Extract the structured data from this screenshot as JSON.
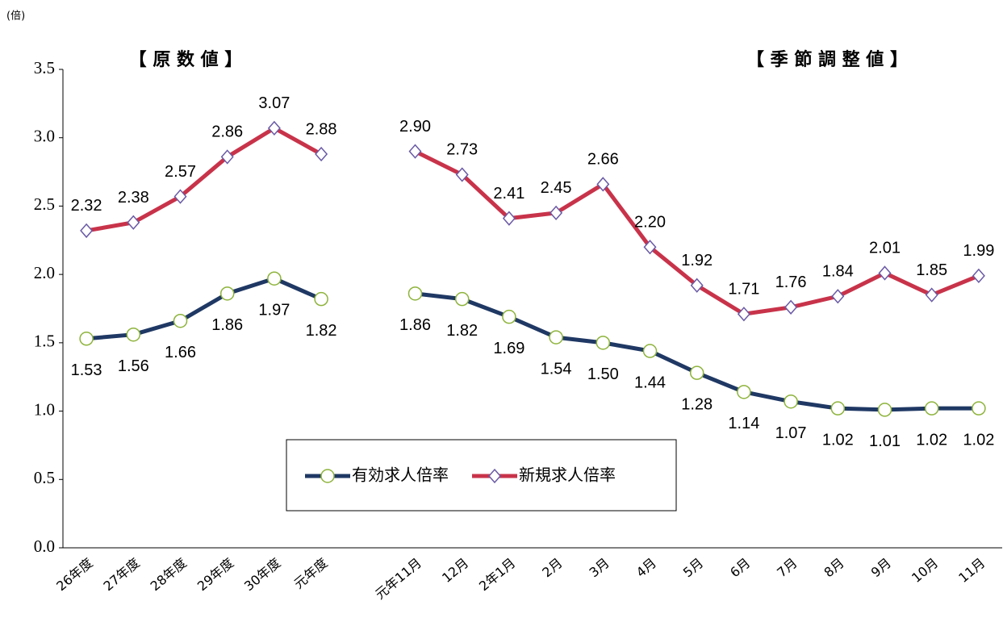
{
  "chart_data": {
    "type": "line",
    "unit_label": "(倍)",
    "annotations": [
      "【 原 数 値 】",
      "【 季 節 調 整 値 】"
    ],
    "categories": [
      "26年度",
      "27年度",
      "28年度",
      "29年度",
      "30年度",
      "元年度",
      null,
      "元年11月",
      "12月",
      "2年1月",
      "2月",
      "3月",
      "4月",
      "5月",
      "6月",
      "7月",
      "8月",
      "9月",
      "10月",
      "11月"
    ],
    "series": [
      {
        "name": "有効求人倍率",
        "color": "#1f3864",
        "marker": "circle",
        "marker_color": "#8db33a",
        "values": [
          1.53,
          1.56,
          1.66,
          1.86,
          1.97,
          1.82,
          null,
          1.86,
          1.82,
          1.69,
          1.54,
          1.5,
          1.44,
          1.28,
          1.14,
          1.07,
          1.02,
          1.01,
          1.02,
          1.02
        ],
        "value_labels": [
          "1.53",
          "1.56",
          "1.66",
          "1.86",
          "1.97",
          "1.82",
          null,
          "1.86",
          "1.82",
          "1.69",
          "1.54",
          "1.50",
          "1.44",
          "1.28",
          "1.14",
          "1.07",
          "1.02",
          "1.01",
          "1.02",
          "1.02"
        ]
      },
      {
        "name": "新規求人倍率",
        "color": "#c8334a",
        "marker": "diamond",
        "marker_color": "#6a5aa6",
        "values": [
          2.32,
          2.38,
          2.57,
          2.86,
          3.07,
          2.88,
          null,
          2.9,
          2.73,
          2.41,
          2.45,
          2.66,
          2.2,
          1.92,
          1.71,
          1.76,
          1.84,
          2.01,
          1.85,
          1.99
        ],
        "value_labels": [
          "2.32",
          "2.38",
          "2.57",
          "2.86",
          "3.07",
          "2.88",
          null,
          "2.90",
          "2.73",
          "2.41",
          "2.45",
          "2.66",
          "2.20",
          "1.92",
          "1.71",
          "1.76",
          "1.84",
          "2.01",
          "1.85",
          "1.99"
        ]
      }
    ],
    "ylim": [
      0,
      3.5
    ],
    "yticks": [
      {
        "value": 0,
        "label": "0.0"
      },
      0.5,
      {
        "value": 1,
        "label": "1.0"
      },
      1.5,
      {
        "value": 2,
        "label": "2.0"
      },
      2.5,
      {
        "value": 3,
        "label": "3.0"
      },
      3.5
    ],
    "grid": false
  }
}
